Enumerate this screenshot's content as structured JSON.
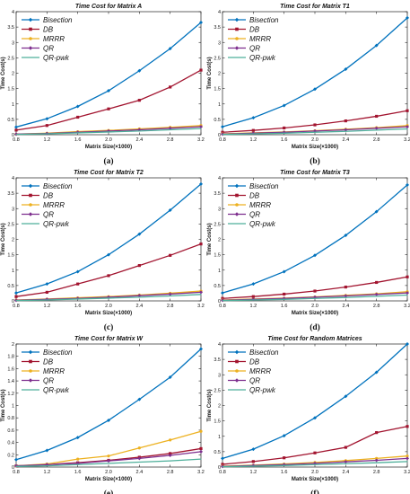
{
  "chart_data": [
    {
      "type": "line",
      "title": "Time Cost for Matrix A",
      "xlabel": "Matrix Size(×1000)",
      "ylabel": "Time Cost(s)",
      "caption": "(a)",
      "x": [
        0.8,
        1.2,
        1.6,
        2.0,
        2.4,
        2.8,
        3.2
      ],
      "xticks": [
        "0.8",
        "1.2",
        "1.6",
        "2.0",
        "2.4",
        "2.8",
        "3.2"
      ],
      "ylim": [
        0,
        4
      ],
      "yticks": [
        "0",
        "0.5",
        "1",
        "1.5",
        "2",
        "2.5",
        "3",
        "3.5",
        "4"
      ],
      "legend_position": "top-left",
      "series": [
        {
          "name": "Bisection",
          "color": "#0072BD",
          "marker": "diamond",
          "values": [
            0.25,
            0.52,
            0.92,
            1.43,
            2.08,
            2.8,
            3.65
          ]
        },
        {
          "name": "DB",
          "color": "#A2142F",
          "marker": "square",
          "values": [
            0.15,
            0.3,
            0.57,
            0.84,
            1.12,
            1.55,
            2.1
          ]
        },
        {
          "name": "MRRR",
          "color": "#EDB120",
          "marker": "circle",
          "values": [
            0.02,
            0.05,
            0.1,
            0.14,
            0.19,
            0.24,
            0.3
          ]
        },
        {
          "name": "QR",
          "color": "#7E2F8E",
          "marker": "diamond",
          "values": [
            0.02,
            0.04,
            0.08,
            0.12,
            0.16,
            0.21,
            0.26
          ]
        },
        {
          "name": "QR-pwk",
          "color": "#4DAF9A",
          "marker": "none",
          "values": [
            0.01,
            0.03,
            0.06,
            0.09,
            0.12,
            0.16,
            0.2
          ]
        }
      ]
    },
    {
      "type": "line",
      "title": "Time Cost for Matrix T1",
      "xlabel": "Matrix Size(×1000)",
      "ylabel": "Time Cost(s)",
      "caption": "(b)",
      "x": [
        0.8,
        1.2,
        1.6,
        2.0,
        2.4,
        2.8,
        3.2
      ],
      "xticks": [
        "0.8",
        "1.2",
        "1.6",
        "2.0",
        "2.4",
        "2.8",
        "3.2"
      ],
      "ylim": [
        0,
        4
      ],
      "yticks": [
        "0",
        "0.5",
        "1",
        "1.5",
        "2",
        "2.5",
        "3",
        "3.5",
        "4"
      ],
      "legend_position": "top-left",
      "series": [
        {
          "name": "Bisection",
          "color": "#0072BD",
          "marker": "diamond",
          "values": [
            0.26,
            0.55,
            0.95,
            1.48,
            2.13,
            2.9,
            3.8
          ]
        },
        {
          "name": "DB",
          "color": "#A2142F",
          "marker": "square",
          "values": [
            0.08,
            0.14,
            0.22,
            0.32,
            0.45,
            0.6,
            0.78
          ]
        },
        {
          "name": "MRRR",
          "color": "#EDB120",
          "marker": "circle",
          "values": [
            0.03,
            0.06,
            0.09,
            0.13,
            0.18,
            0.23,
            0.3
          ]
        },
        {
          "name": "QR",
          "color": "#7E2F8E",
          "marker": "diamond",
          "values": [
            0.02,
            0.05,
            0.08,
            0.12,
            0.16,
            0.21,
            0.26
          ]
        },
        {
          "name": "QR-pwk",
          "color": "#4DAF9A",
          "marker": "none",
          "values": [
            0.01,
            0.03,
            0.05,
            0.08,
            0.11,
            0.15,
            0.19
          ]
        }
      ]
    },
    {
      "type": "line",
      "title": "Time Cost for Matrix T2",
      "xlabel": "Matrix Size(×1000)",
      "ylabel": "Time Cost(s)",
      "caption": "(c)",
      "x": [
        0.8,
        1.2,
        1.6,
        2.0,
        2.4,
        2.8,
        3.2
      ],
      "xticks": [
        "0.8",
        "1.2",
        "1.6",
        "2.0",
        "2.4",
        "2.8",
        "3.2"
      ],
      "ylim": [
        0,
        4
      ],
      "yticks": [
        "0",
        "0.5",
        "1",
        "1.5",
        "2",
        "2.5",
        "3",
        "3.5",
        "4"
      ],
      "legend_position": "top-left",
      "series": [
        {
          "name": "Bisection",
          "color": "#0072BD",
          "marker": "diamond",
          "values": [
            0.26,
            0.55,
            0.95,
            1.5,
            2.17,
            2.95,
            3.8
          ]
        },
        {
          "name": "DB",
          "color": "#A2142F",
          "marker": "square",
          "values": [
            0.14,
            0.28,
            0.55,
            0.82,
            1.15,
            1.48,
            1.85
          ]
        },
        {
          "name": "MRRR",
          "color": "#EDB120",
          "marker": "circle",
          "values": [
            0.03,
            0.06,
            0.1,
            0.14,
            0.19,
            0.25,
            0.32
          ]
        },
        {
          "name": "QR",
          "color": "#7E2F8E",
          "marker": "diamond",
          "values": [
            0.02,
            0.05,
            0.08,
            0.12,
            0.17,
            0.22,
            0.28
          ]
        },
        {
          "name": "QR-pwk",
          "color": "#4DAF9A",
          "marker": "none",
          "values": [
            0.01,
            0.03,
            0.06,
            0.09,
            0.12,
            0.16,
            0.21
          ]
        }
      ]
    },
    {
      "type": "line",
      "title": "Time Cost for Matrix T3",
      "xlabel": "Matrix Size(×1000)",
      "ylabel": "Time Cost(s)",
      "caption": "(d)",
      "x": [
        0.8,
        1.2,
        1.6,
        2.0,
        2.4,
        2.8,
        3.2
      ],
      "xticks": [
        "0.8",
        "1.2",
        "1.6",
        "2.0",
        "2.4",
        "2.8",
        "3.2"
      ],
      "ylim": [
        0,
        4
      ],
      "yticks": [
        "0",
        "0.5",
        "1",
        "1.5",
        "2",
        "2.5",
        "3",
        "3.5",
        "4"
      ],
      "legend_position": "top-left",
      "series": [
        {
          "name": "Bisection",
          "color": "#0072BD",
          "marker": "diamond",
          "values": [
            0.26,
            0.55,
            0.95,
            1.48,
            2.13,
            2.9,
            3.77
          ]
        },
        {
          "name": "DB",
          "color": "#A2142F",
          "marker": "square",
          "values": [
            0.08,
            0.14,
            0.22,
            0.32,
            0.45,
            0.6,
            0.78
          ]
        },
        {
          "name": "MRRR",
          "color": "#EDB120",
          "marker": "circle",
          "values": [
            0.03,
            0.06,
            0.09,
            0.13,
            0.18,
            0.23,
            0.3
          ]
        },
        {
          "name": "QR",
          "color": "#7E2F8E",
          "marker": "diamond",
          "values": [
            0.02,
            0.05,
            0.08,
            0.12,
            0.16,
            0.21,
            0.26
          ]
        },
        {
          "name": "QR-pwk",
          "color": "#4DAF9A",
          "marker": "none",
          "values": [
            0.01,
            0.03,
            0.05,
            0.08,
            0.11,
            0.15,
            0.19
          ]
        }
      ]
    },
    {
      "type": "line",
      "title": "Time Cost for Matrix W",
      "xlabel": "Matrix Size(×1000)",
      "ylabel": "Time Cost(s)",
      "caption": "(e)",
      "x": [
        0.8,
        1.2,
        1.6,
        2.0,
        2.4,
        2.8,
        3.2
      ],
      "xticks": [
        "0.8",
        "1.2",
        "1.6",
        "2.0",
        "2.4",
        "2.8",
        "3.2"
      ],
      "ylim": [
        0,
        2
      ],
      "yticks": [
        "0",
        "0.2",
        "0.4",
        "0.6",
        "0.8",
        "1",
        "1.2",
        "1.4",
        "1.6",
        "1.8",
        "2"
      ],
      "legend_position": "top-left",
      "series": [
        {
          "name": "Bisection",
          "color": "#0072BD",
          "marker": "diamond",
          "values": [
            0.12,
            0.27,
            0.48,
            0.76,
            1.1,
            1.46,
            1.92
          ]
        },
        {
          "name": "DB",
          "color": "#A2142F",
          "marker": "square",
          "values": [
            0.02,
            0.04,
            0.07,
            0.11,
            0.16,
            0.22,
            0.3
          ]
        },
        {
          "name": "MRRR",
          "color": "#EDB120",
          "marker": "circle",
          "values": [
            0.02,
            0.05,
            0.13,
            0.18,
            0.31,
            0.44,
            0.58
          ]
        },
        {
          "name": "QR",
          "color": "#7E2F8E",
          "marker": "diamond",
          "values": [
            0.02,
            0.04,
            0.06,
            0.1,
            0.14,
            0.19,
            0.25
          ]
        },
        {
          "name": "QR-pwk",
          "color": "#4DAF9A",
          "marker": "none",
          "values": [
            0.01,
            0.02,
            0.04,
            0.06,
            0.08,
            0.1,
            0.13
          ]
        }
      ]
    },
    {
      "type": "line",
      "title": "Time Cost for Random Matrices",
      "xlabel": "Matrix Size(×1000)",
      "ylabel": "Time Cost(s)",
      "caption": "(f)",
      "x": [
        0.8,
        1.2,
        1.6,
        2.0,
        2.4,
        2.8,
        3.2
      ],
      "xticks": [
        "0.8",
        "1.2",
        "1.6",
        "2.0",
        "2.4",
        "2.8",
        "3.2"
      ],
      "ylim": [
        0,
        4
      ],
      "yticks": [
        "0",
        "0.5",
        "1",
        "1.5",
        "2",
        "2.5",
        "3",
        "3.5",
        "4"
      ],
      "legend_position": "top-left",
      "series": [
        {
          "name": "Bisection",
          "color": "#0072BD",
          "marker": "diamond",
          "values": [
            0.28,
            0.58,
            1.02,
            1.6,
            2.3,
            3.08,
            4.0
          ]
        },
        {
          "name": "DB",
          "color": "#A2142F",
          "marker": "square",
          "values": [
            0.09,
            0.18,
            0.3,
            0.46,
            0.64,
            1.12,
            1.32
          ]
        },
        {
          "name": "MRRR",
          "color": "#EDB120",
          "marker": "circle",
          "values": [
            0.03,
            0.06,
            0.1,
            0.15,
            0.21,
            0.28,
            0.36
          ]
        },
        {
          "name": "QR",
          "color": "#7E2F8E",
          "marker": "diamond",
          "values": [
            0.02,
            0.05,
            0.08,
            0.12,
            0.17,
            0.22,
            0.28
          ]
        },
        {
          "name": "QR-pwk",
          "color": "#4DAF9A",
          "marker": "none",
          "values": [
            0.01,
            0.03,
            0.05,
            0.08,
            0.11,
            0.14,
            0.18
          ]
        }
      ]
    }
  ]
}
